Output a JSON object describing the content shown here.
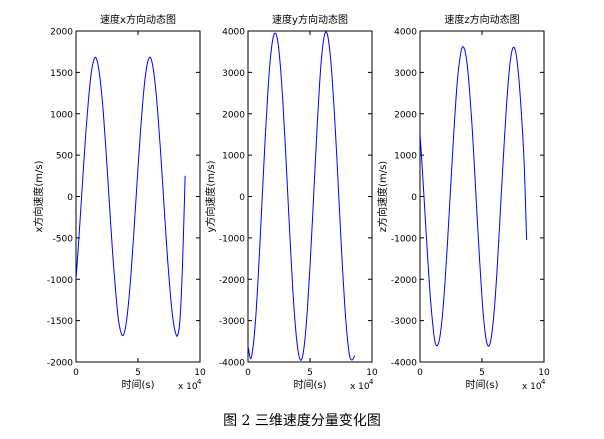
{
  "figure": {
    "caption": "图 2  三维速度分量变化图"
  },
  "chart_data": [
    {
      "type": "line",
      "title": "速度x方向动态图",
      "xlabel": "时间(s)",
      "ylabel": "x方向速度(m/s)",
      "x_multiplier_label": "x 10",
      "x_multiplier_exp": "4",
      "xlim": [
        0,
        10
      ],
      "ylim": [
        -2000,
        2000
      ],
      "xticks": [
        0,
        5,
        10
      ],
      "yticks": [
        -2000,
        -1500,
        -1000,
        -500,
        0,
        500,
        1000,
        1500,
        2000
      ],
      "xtick_labels": [
        "0",
        "5",
        "10"
      ],
      "ytick_labels": [
        "-2000",
        "-1500",
        "-1000",
        "-500",
        "0",
        "500",
        "1000",
        "1500",
        "2000"
      ],
      "grid": false,
      "line_color": "#0000ff",
      "series": [
        {
          "x": [
            0,
            0.2,
            0.4,
            0.6,
            0.8,
            1.0,
            1.2,
            1.4,
            1.6,
            1.8,
            2.0,
            2.2,
            2.4,
            2.6,
            2.8,
            3.0,
            3.2,
            3.4,
            3.6,
            3.8,
            4.0,
            4.2,
            4.4,
            4.6,
            4.8,
            5.0,
            5.2,
            5.4,
            5.6,
            5.8,
            6.0,
            6.2,
            6.4,
            6.6,
            6.8,
            7.0,
            7.2,
            7.4,
            7.6,
            7.8,
            8.0,
            8.2,
            8.4,
            8.6,
            8.8
          ],
          "y": [
            -1000,
            -577,
            -122,
            342,
            786,
            1158,
            1459,
            1632,
            1680,
            1571,
            1348,
            1020,
            601,
            135,
            -337,
            -780,
            -1155,
            -1461,
            -1630,
            -1680,
            -1576,
            -1340,
            -1004,
            -583,
            -121,
            349,
            786,
            1168,
            1464,
            1636,
            1680,
            1571,
            1337,
            1005,
            586,
            128,
            -343,
            -788,
            -1163,
            -1460,
            -1633,
            -1680,
            -1460,
            -780,
            250
          ]
        }
      ]
    },
    {
      "type": "line",
      "title": "速度y方向动态图",
      "xlabel": "时间(s)",
      "ylabel": "y方向速度(m/s)",
      "x_multiplier_label": "x 10",
      "x_multiplier_exp": "4",
      "xlim": [
        0,
        10
      ],
      "ylim": [
        -4000,
        4000
      ],
      "xticks": [
        0,
        5,
        10
      ],
      "yticks": [
        -4000,
        -3000,
        -2000,
        -1000,
        0,
        1000,
        2000,
        3000,
        4000
      ],
      "xtick_labels": [
        "0",
        "5",
        "10"
      ],
      "ytick_labels": [
        "-4000",
        "-3000",
        "-2000",
        "-1000",
        "0",
        "1000",
        "2000",
        "3000",
        "4000"
      ],
      "grid": false,
      "line_color": "#0000ff",
      "series": [
        {
          "x": [
            0,
            0.2,
            0.4,
            0.6,
            0.8,
            1.0,
            1.2,
            1.4,
            1.6,
            1.8,
            2.0,
            2.2,
            2.4,
            2.6,
            2.8,
            3.0,
            3.2,
            3.4,
            3.6,
            3.8,
            4.0,
            4.2,
            4.4,
            4.6,
            4.8,
            5.0,
            5.2,
            5.4,
            5.6,
            5.8,
            6.0,
            6.2,
            6.4,
            6.6,
            6.8,
            7.0,
            7.2,
            7.4,
            7.6,
            7.8,
            8.0,
            8.2,
            8.4,
            8.6
          ],
          "y": [
            -3600,
            -3920,
            -3650,
            -3020,
            -2070,
            -910,
            300,
            1480,
            2510,
            3320,
            3800,
            3950,
            3750,
            3190,
            2340,
            1280,
            90,
            -1080,
            -2180,
            -3050,
            -3650,
            -3940,
            -3870,
            -3430,
            -2680,
            -1690,
            -550,
            660,
            1820,
            2850,
            3560,
            3940,
            3920,
            3520,
            2810,
            1850,
            740,
            -460,
            -1620,
            -2620,
            -3380,
            -3860,
            -3950,
            -3850
          ]
        }
      ]
    },
    {
      "type": "line",
      "title": "速度z方向动态图",
      "xlabel": "时间(s)",
      "ylabel": "z方向速度(m/s)",
      "x_multiplier_label": "x 10",
      "x_multiplier_exp": "4",
      "xlim": [
        0,
        10
      ],
      "ylim": [
        -4000,
        4000
      ],
      "xticks": [
        0,
        5,
        10
      ],
      "yticks": [
        -4000,
        -3000,
        -2000,
        -1000,
        0,
        1000,
        2000,
        3000,
        4000
      ],
      "xtick_labels": [
        "0",
        "5",
        "10"
      ],
      "ytick_labels": [
        "-4000",
        "-3000",
        "-2000",
        "-1000",
        "0",
        "1000",
        "2000",
        "3000",
        "4000"
      ],
      "grid": false,
      "line_color": "#0000ff",
      "series": [
        {
          "x": [
            0,
            0.2,
            0.4,
            0.6,
            0.8,
            1.0,
            1.2,
            1.4,
            1.6,
            1.8,
            2.0,
            2.2,
            2.4,
            2.6,
            2.8,
            3.0,
            3.2,
            3.4,
            3.6,
            3.8,
            4.0,
            4.2,
            4.4,
            4.6,
            4.8,
            5.0,
            5.2,
            5.4,
            5.6,
            5.8,
            6.0,
            6.2,
            6.4,
            6.6,
            6.8,
            7.0,
            7.2,
            7.4,
            7.6,
            7.8,
            8.0,
            8.2,
            8.4,
            8.6
          ],
          "y": [
            1500,
            600,
            -400,
            -1400,
            -2300,
            -3000,
            -3500,
            -3600,
            -3400,
            -2900,
            -2150,
            -1200,
            -150,
            900,
            1900,
            2750,
            3300,
            3600,
            3550,
            3200,
            2550,
            1700,
            650,
            -450,
            -1500,
            -2450,
            -3150,
            -3550,
            -3600,
            -3300,
            -2700,
            -1850,
            -800,
            300,
            1350,
            2300,
            3050,
            3500,
            3600,
            3350,
            2750,
            1900,
            800,
            -1050
          ]
        }
      ]
    }
  ]
}
